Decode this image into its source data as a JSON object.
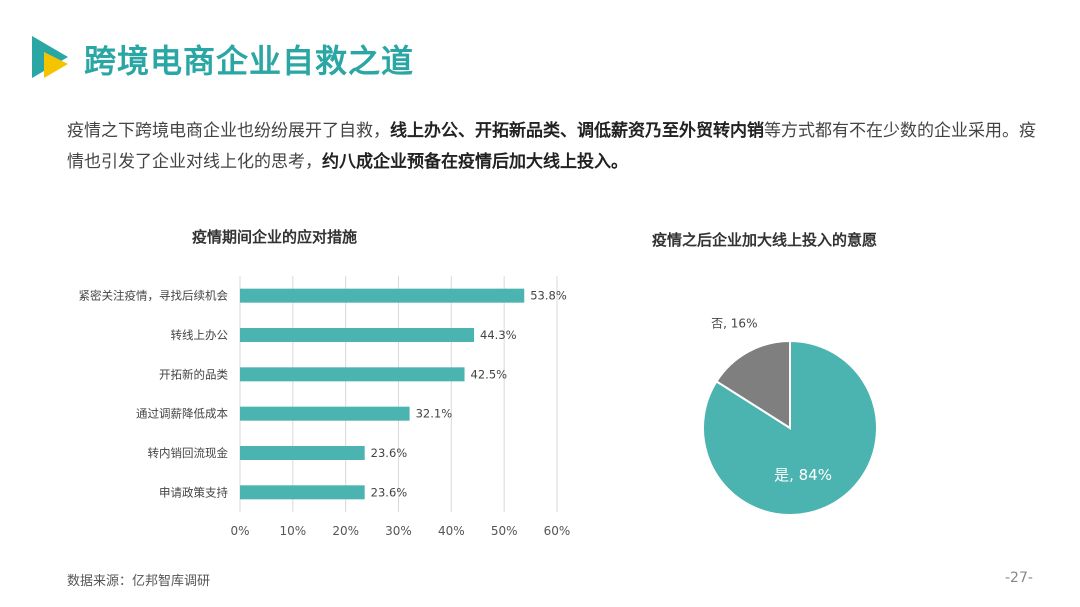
{
  "page": {
    "title": "跨境电商企业自救之道",
    "intro": {
      "p1": "疫情之下跨境电商企业也纷纷展开了自救，",
      "b1": "线上办公、开拓新品类、调低薪资乃至外贸转内销",
      "p2": "等方式都有不在少数的企业采用。疫情也引发了企业对线上化的思考，",
      "b2": "约八成企业预备在疫情后加大线上投入。"
    },
    "source": "数据来源：亿邦智库调研",
    "page_number": "-27-",
    "accent_color": "#2aa7a4"
  },
  "chart_data": [
    {
      "type": "bar",
      "orientation": "horizontal",
      "title": "疫情期间企业的应对措施",
      "categories": [
        "紧密关注疫情，寻找后续机会",
        "转线上办公",
        "开拓新的品类",
        "通过调薪降低成本",
        "转内销回流现金",
        "申请政策支持"
      ],
      "values": [
        53.8,
        44.3,
        42.5,
        32.1,
        23.6,
        23.6
      ],
      "value_labels": [
        "53.8%",
        "44.3%",
        "42.5%",
        "32.1%",
        "23.6%",
        "23.6%"
      ],
      "xlim": [
        0,
        60
      ],
      "xticks": [
        0,
        10,
        20,
        30,
        40,
        50,
        60
      ],
      "xtick_labels": [
        "0%",
        "10%",
        "20%",
        "30%",
        "40%",
        "50%",
        "60%"
      ],
      "grid": true,
      "color": "#4bb3b0"
    },
    {
      "type": "pie",
      "title": "疫情之后企业加大线上投入的意愿",
      "labels": [
        "是",
        "否"
      ],
      "values": [
        84,
        16
      ],
      "slice_labels": [
        "是, 84%",
        "否, 16%"
      ],
      "colors": [
        "#4bb3b0",
        "#7f7f7f"
      ]
    }
  ]
}
